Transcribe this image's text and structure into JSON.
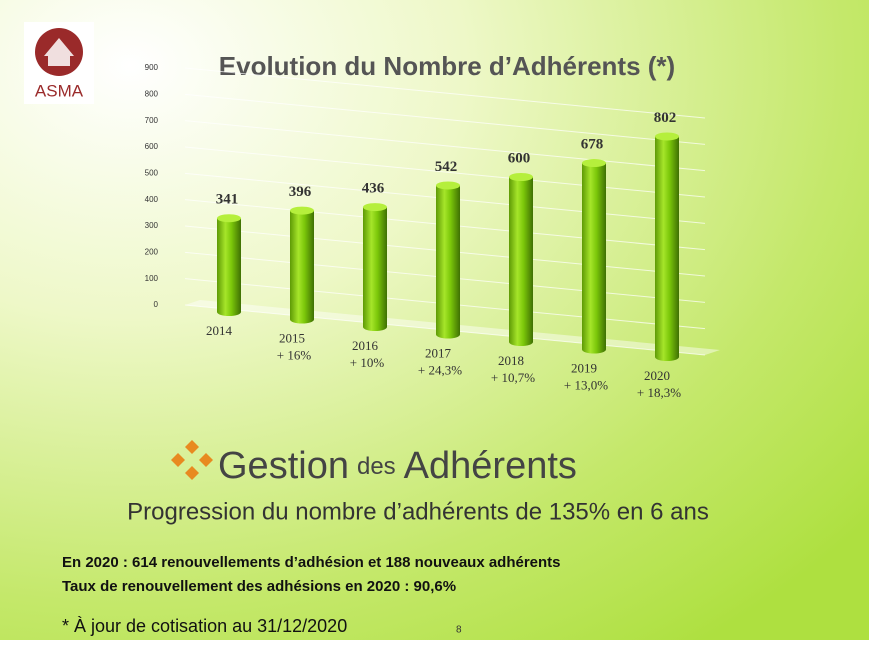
{
  "logo": {
    "text": "ASMA"
  },
  "chart_data": {
    "type": "bar",
    "title": "Evolution du Nombre d’Adhérents (*)",
    "categories": [
      "2014",
      "2015",
      "2016",
      "2017",
      "2018",
      "2019",
      "2020"
    ],
    "growth_labels": [
      null,
      "+ 16%",
      "+ 10%",
      "+ 24,3%",
      "+ 10,7%",
      "+ 13,0%",
      "+ 18,3%"
    ],
    "values": [
      341,
      396,
      436,
      542,
      600,
      678,
      802
    ],
    "color": "#7cc80a",
    "ylim": [
      0,
      900
    ],
    "yticks": [
      0,
      100,
      200,
      300,
      400,
      500,
      600,
      700,
      800,
      900
    ],
    "grid": true
  },
  "heading": {
    "first": "Gestion",
    "small": "des",
    "last": "Adhérents"
  },
  "subtitle": "Progression du nombre d’adhérents de 135% en 6 ans",
  "notes": [
    "En 2020 : 614 renouvellements d’adhésion et 188 nouveaux adhérents",
    "Taux de renouvellement des adhésions en 2020 : 90,6%"
  ],
  "footnote": "* À jour de cotisation au 31/12/2020",
  "page_number": "8"
}
